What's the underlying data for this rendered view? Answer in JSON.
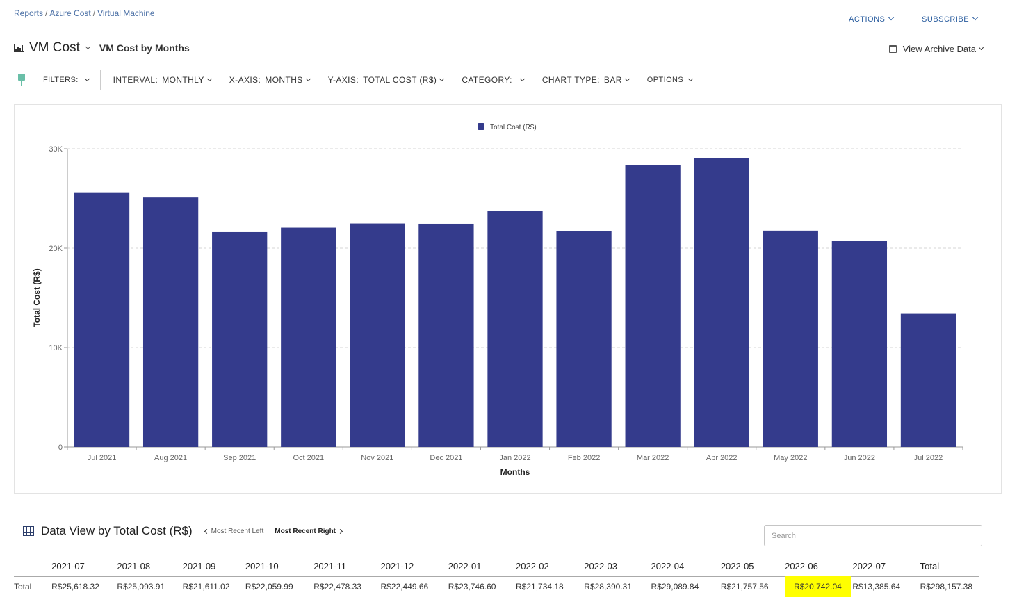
{
  "breadcrumb": [
    "Reports",
    "Azure Cost",
    "Virtual Machine"
  ],
  "actions": {
    "actions_label": "ACTIONS",
    "subscribe_label": "SUBSCRIBE"
  },
  "header": {
    "title": "VM Cost",
    "subtitle": "VM Cost by Months",
    "archive_label": "View Archive Data"
  },
  "toolbar": {
    "filters_label": "FILTERS:",
    "interval_label": "INTERVAL:",
    "interval_value": "MONTHLY",
    "xaxis_label": "X-AXIS:",
    "xaxis_value": "MONTHS",
    "yaxis_label": "Y-AXIS:",
    "yaxis_value": "TOTAL COST (R$)",
    "category_label": "CATEGORY:",
    "charttype_label": "CHART TYPE:",
    "charttype_value": "BAR",
    "options_label": "OPTIONS"
  },
  "colors": {
    "bar": "#343b8c",
    "highlight": "#ffff00",
    "filter_pin": "#6abfa8"
  },
  "chart_data": {
    "type": "bar",
    "categories": [
      "Jul 2021",
      "Aug 2021",
      "Sep 2021",
      "Oct 2021",
      "Nov 2021",
      "Dec 2021",
      "Jan 2022",
      "Feb 2022",
      "Mar 2022",
      "Apr 2022",
      "May 2022",
      "Jun 2022",
      "Jul 2022"
    ],
    "series": [
      {
        "name": "Total Cost (R$)",
        "values": [
          25618.32,
          25093.91,
          21611.02,
          22059.99,
          22478.33,
          22449.66,
          23746.6,
          21734.18,
          28390.31,
          29089.84,
          21757.56,
          20742.04,
          13385.64
        ]
      }
    ],
    "xlabel": "Months",
    "ylabel": "Total Cost (R$)",
    "ylim": [
      0,
      30000
    ],
    "yticks": [
      0,
      10000,
      20000,
      30000
    ],
    "ytick_labels": [
      "0",
      "10K",
      "20K",
      "30K"
    ],
    "grid": true,
    "legend": "top-center"
  },
  "data_view": {
    "title": "Data View by Total Cost (R$)",
    "most_recent_left": "Most Recent Left",
    "most_recent_right": "Most Recent Right",
    "search_placeholder": "Search",
    "columns": [
      "",
      "2021-07",
      "2021-08",
      "2021-09",
      "2021-10",
      "2021-11",
      "2021-12",
      "2022-01",
      "2022-02",
      "2022-03",
      "2022-04",
      "2022-05",
      "2022-06",
      "2022-07",
      "Total"
    ],
    "rows": [
      [
        "Total",
        "R$25,618.32",
        "R$25,093.91",
        "R$21,611.02",
        "R$22,059.99",
        "R$22,478.33",
        "R$22,449.66",
        "R$23,746.60",
        "R$21,734.18",
        "R$28,390.31",
        "R$29,089.84",
        "R$21,757.56",
        "R$20,742.04",
        "R$13,385.64",
        "R$298,157.38"
      ]
    ],
    "highlight_column": 12
  }
}
